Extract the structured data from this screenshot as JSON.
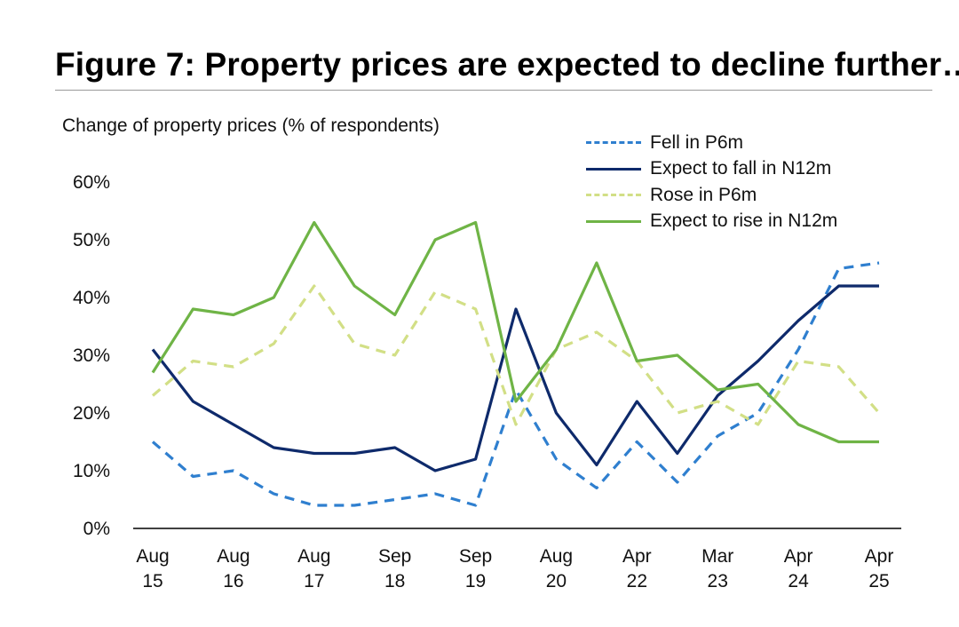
{
  "figure": {
    "title": "Figure 7: Property prices are expected to decline further…",
    "subtitle": "Change of property prices (% of respondents)"
  },
  "colors": {
    "fell_p6m": "#2f7fcf",
    "expect_fall": "#0e2a6b",
    "rose_p6m": "#d2df86",
    "expect_rise": "#6fb446",
    "axis": "#000000"
  },
  "chart_data": {
    "type": "line",
    "title": "Figure 7: Property prices are expected to decline further…",
    "ylabel": "Change of property prices (% of respondents)",
    "xlabel": "",
    "ylim": [
      0,
      60
    ],
    "yticks": [
      0,
      10,
      20,
      30,
      40,
      50,
      60
    ],
    "ytick_labels": [
      "0%",
      "10%",
      "20%",
      "30%",
      "40%",
      "50%",
      "60%"
    ],
    "x_tick_labels": [
      [
        "Aug",
        "15"
      ],
      [
        "Aug",
        "16"
      ],
      [
        "Aug",
        "17"
      ],
      [
        "Sep",
        "18"
      ],
      [
        "Sep",
        "19"
      ],
      [
        "Aug",
        "20"
      ],
      [
        "Apr",
        "22"
      ],
      [
        "Mar",
        "23"
      ],
      [
        "Apr",
        "24"
      ],
      [
        "Apr",
        "25"
      ]
    ],
    "survey_points": 19,
    "legend_position": "top-right",
    "series": [
      {
        "name": "Fell in P6m",
        "style": "dashed",
        "colorKey": "fell_p6m",
        "values": [
          15,
          9,
          10,
          6,
          4,
          4,
          5,
          6,
          4,
          24,
          12,
          7,
          15,
          8,
          16,
          20,
          31,
          45,
          46
        ]
      },
      {
        "name": "Expect to fall in N12m",
        "style": "solid",
        "colorKey": "expect_fall",
        "values": [
          31,
          22,
          18,
          14,
          13,
          13,
          14,
          10,
          12,
          38,
          20,
          11,
          22,
          13,
          23,
          29,
          36,
          42,
          42
        ]
      },
      {
        "name": "Rose in P6m",
        "style": "dashed",
        "colorKey": "rose_p6m",
        "values": [
          23,
          29,
          28,
          32,
          42,
          32,
          30,
          41,
          38,
          18,
          31,
          34,
          29,
          20,
          22,
          18,
          29,
          28,
          20
        ]
      },
      {
        "name": "Expect to rise in N12m",
        "style": "solid",
        "colorKey": "expect_rise",
        "values": [
          27,
          38,
          37,
          40,
          53,
          42,
          37,
          50,
          53,
          22,
          31,
          46,
          29,
          30,
          24,
          25,
          18,
          15,
          15
        ]
      }
    ]
  }
}
